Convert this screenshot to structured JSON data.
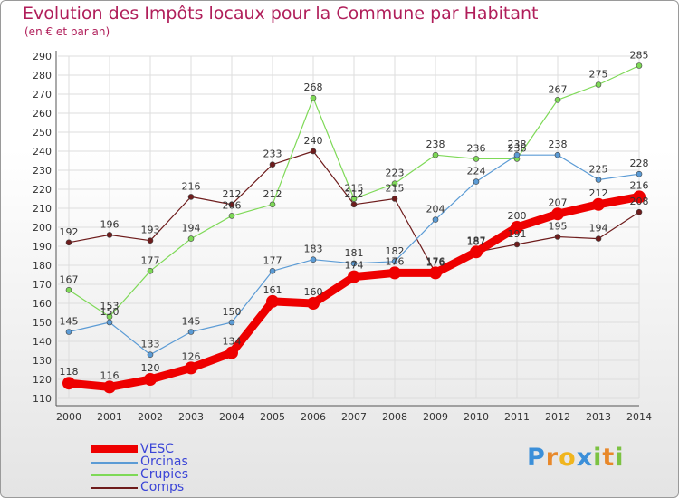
{
  "header": {
    "title": "Evolution des Impôts locaux pour la Commune par Habitant",
    "subtitle": "(en € et par an)"
  },
  "colors": {
    "title": "#b01e5a",
    "legend_text": "#3c46d7",
    "axis_text": "#333333",
    "grid": "#dddddd"
  },
  "chart_data": {
    "type": "line",
    "title": "Evolution des Impôts locaux pour la Commune par Habitant",
    "subtitle": "(en € et par an)",
    "xlabel": "",
    "ylabel": "",
    "ylim": [
      110,
      290
    ],
    "yticks": [
      110,
      120,
      130,
      140,
      150,
      160,
      170,
      180,
      190,
      200,
      210,
      220,
      230,
      240,
      250,
      260,
      270,
      280,
      290
    ],
    "grid": true,
    "legend_position": "bottom-left",
    "x": [
      2000,
      2001,
      2002,
      2003,
      2004,
      2005,
      2006,
      2007,
      2008,
      2009,
      2010,
      2011,
      2012,
      2013,
      2014
    ],
    "series": [
      {
        "name": "Comps",
        "color": "#6e1c1c",
        "values": [
          192,
          196,
          193,
          216,
          212,
          233,
          240,
          212,
          215,
          176,
          187,
          191,
          195,
          194,
          208
        ],
        "labels": [
          "192",
          "196",
          "193",
          "216",
          "212",
          "233",
          "240",
          "212",
          "215",
          "176",
          "187",
          "191",
          "195",
          "194",
          "208"
        ]
      },
      {
        "name": "Crupies",
        "color": "#7ed957",
        "values": [
          167,
          153,
          177,
          194,
          206,
          212,
          268,
          215,
          223,
          238,
          236,
          236,
          267,
          275,
          285
        ],
        "labels": [
          "167",
          "153",
          "177",
          "194",
          "206",
          "212",
          "268",
          "215",
          "223",
          "238",
          "236",
          "236",
          "267",
          "275",
          "285"
        ]
      },
      {
        "name": "Orcinas",
        "color": "#5b9bd5",
        "values": [
          145,
          150,
          133,
          145,
          150,
          177,
          183,
          181,
          182,
          204,
          224,
          238,
          238,
          225,
          228
        ],
        "labels": [
          "145",
          "150",
          "133",
          "145",
          "150",
          "177",
          "183",
          "181",
          "182",
          "204",
          "224",
          "238",
          "238",
          "225",
          "228"
        ]
      },
      {
        "name": "VESC",
        "color": "#ee0000",
        "values": [
          118,
          116,
          120,
          126,
          134,
          161,
          160,
          174,
          176,
          176,
          187,
          200,
          207,
          212,
          216
        ],
        "labels": [
          "118",
          "116",
          "120",
          "126",
          "134",
          "161",
          "160",
          "174",
          "176",
          "176",
          "187",
          "200",
          "207",
          "212",
          "216"
        ]
      }
    ]
  },
  "legend": {
    "items": [
      {
        "label": "VESC",
        "color": "#ee0000"
      },
      {
        "label": "Orcinas",
        "color": "#5b9bd5"
      },
      {
        "label": "Crupies",
        "color": "#7ed957"
      },
      {
        "label": "Comps",
        "color": "#6e1c1c"
      }
    ]
  },
  "logo": {
    "letters": [
      "P",
      "r",
      "o",
      "x",
      "i",
      "t",
      "i"
    ],
    "colors": [
      "#3b8fd9",
      "#e8882a",
      "#f0b51e",
      "#3b8fd9",
      "#7cc242",
      "#e8882a",
      "#7cc242"
    ]
  }
}
